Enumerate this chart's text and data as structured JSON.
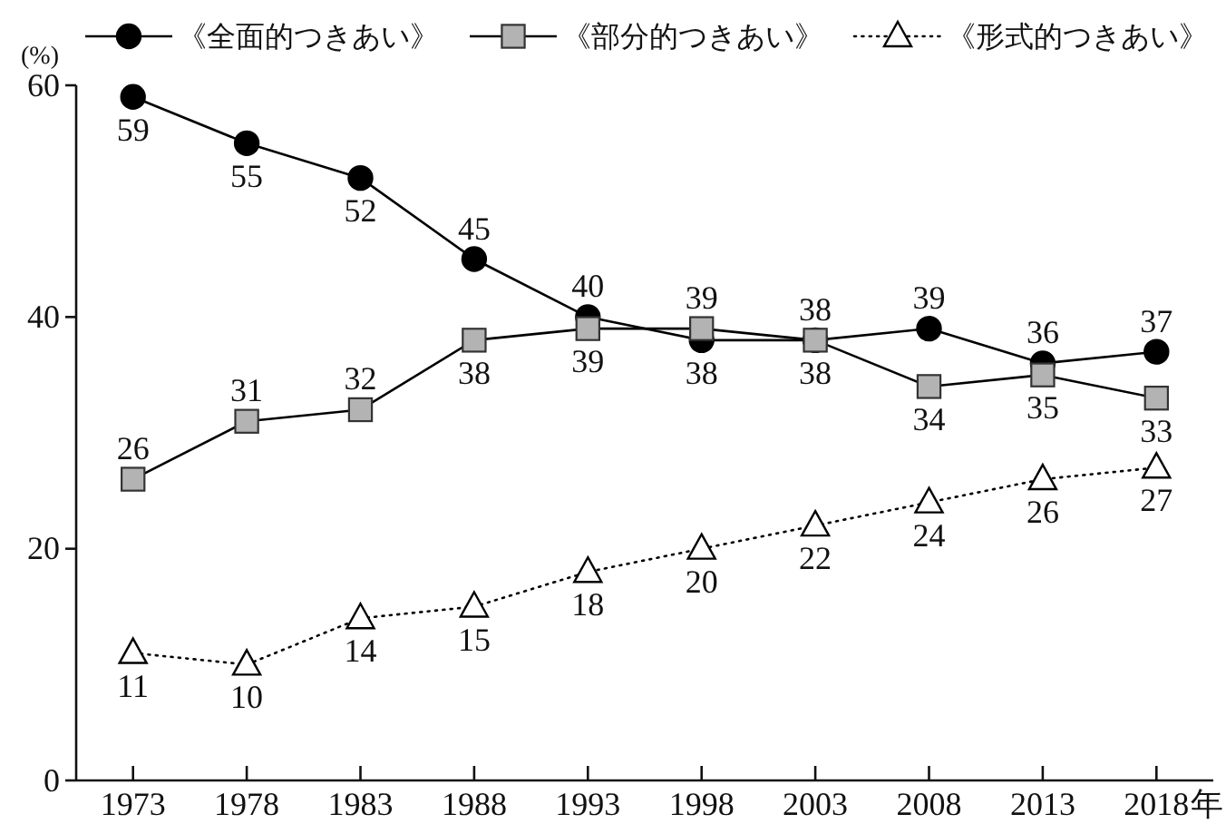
{
  "chart_data": {
    "type": "line",
    "ylabel": "(%)",
    "xlabel": "年",
    "categories": [
      "1973",
      "1978",
      "1983",
      "1988",
      "1993",
      "1998",
      "2003",
      "2008",
      "2013",
      "2018"
    ],
    "ylim": [
      0,
      60
    ],
    "yticks": [
      0,
      20,
      40,
      60
    ],
    "legend": "top",
    "data_labels": true,
    "series": [
      {
        "name": "《全面的つきあい》",
        "color": "#000000",
        "marker": "circle",
        "line_style": "solid",
        "values": [
          59,
          55,
          52,
          45,
          40,
          38,
          38,
          39,
          36,
          37
        ]
      },
      {
        "name": "《部分的つきあい》",
        "color": "#000000",
        "marker": "square",
        "line_style": "solid",
        "values": [
          26,
          31,
          32,
          38,
          39,
          39,
          38,
          34,
          35,
          33
        ]
      },
      {
        "name": "《形式的つきあい》",
        "color": "#000000",
        "marker": "triangle",
        "line_style": "dotted",
        "values": [
          11,
          10,
          14,
          15,
          18,
          20,
          22,
          24,
          26,
          27
        ]
      }
    ]
  }
}
